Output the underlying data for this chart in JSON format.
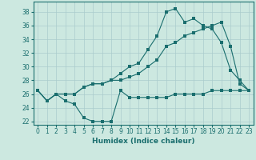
{
  "title": "",
  "xlabel": "Humidex (Indice chaleur)",
  "ylabel": "",
  "bg_color": "#cce8e0",
  "grid_color": "#aacccc",
  "line_color": "#1a6e6e",
  "xlim": [
    -0.5,
    23.5
  ],
  "ylim": [
    21.5,
    39.5
  ],
  "yticks": [
    22,
    24,
    26,
    28,
    30,
    32,
    34,
    36,
    38
  ],
  "xticks": [
    0,
    1,
    2,
    3,
    4,
    5,
    6,
    7,
    8,
    9,
    10,
    11,
    12,
    13,
    14,
    15,
    16,
    17,
    18,
    19,
    20,
    21,
    22,
    23
  ],
  "line1_x": [
    0,
    1,
    2,
    3,
    4,
    5,
    6,
    7,
    8,
    9,
    10,
    11,
    12,
    13,
    14,
    15,
    16,
    17,
    18,
    19,
    20,
    21,
    22,
    23
  ],
  "line1_y": [
    26.5,
    25,
    26,
    25,
    24.5,
    22.5,
    22,
    22,
    22,
    26.5,
    25.5,
    25.5,
    25.5,
    25.5,
    25.5,
    26,
    26,
    26,
    26,
    26.5,
    26.5,
    26.5,
    26.5,
    26.5
  ],
  "line2_x": [
    0,
    1,
    2,
    3,
    4,
    5,
    6,
    7,
    8,
    9,
    10,
    11,
    12,
    13,
    14,
    15,
    16,
    17,
    18,
    19,
    20,
    21,
    22,
    23
  ],
  "line2_y": [
    26.5,
    25,
    26,
    26,
    26,
    27,
    27.5,
    27.5,
    28,
    29,
    30,
    30.5,
    32.5,
    34.5,
    38,
    38.5,
    36.5,
    37,
    36,
    35.5,
    33.5,
    29.5,
    28,
    26.5
  ],
  "line3_x": [
    0,
    1,
    2,
    3,
    4,
    5,
    6,
    7,
    8,
    9,
    10,
    11,
    12,
    13,
    14,
    15,
    16,
    17,
    18,
    19,
    20,
    21,
    22,
    23
  ],
  "line3_y": [
    26.5,
    25,
    26,
    26,
    26,
    27,
    27.5,
    27.5,
    28,
    28,
    28.5,
    29,
    30,
    31,
    33,
    33.5,
    34.5,
    35,
    35.5,
    36,
    36.5,
    33,
    27.5,
    26.5
  ],
  "marker_size": 2.5,
  "line_width": 0.8,
  "tick_fontsize": 5.5,
  "xlabel_fontsize": 6.5
}
